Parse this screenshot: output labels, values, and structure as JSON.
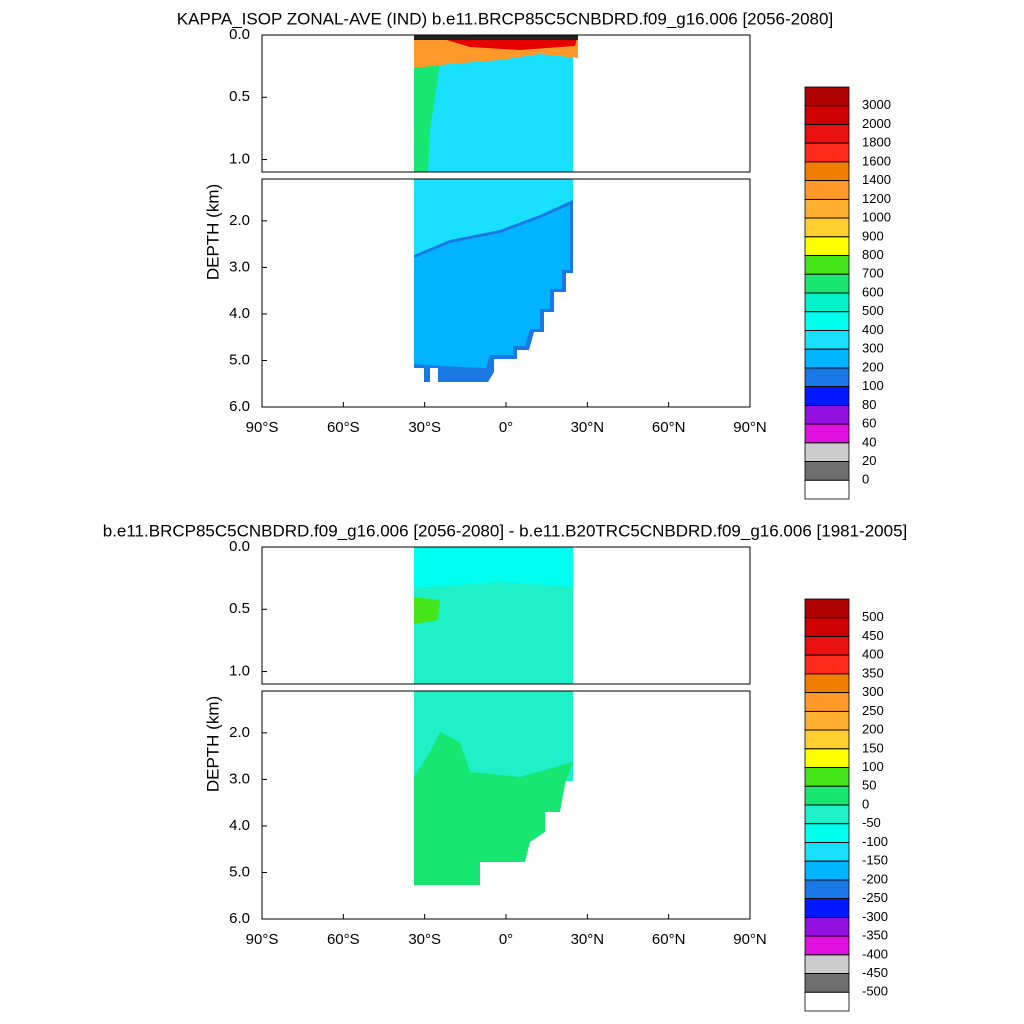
{
  "chart_data": [
    {
      "type": "contour",
      "title": "KAPPA_ISOP ZONAL-AVE (IND) b.e11.BRCP85C5CNBDRD.f09_g16.006 [2056-2080]",
      "ylabel": "DEPTH (km)",
      "xlim": [
        -90,
        90
      ],
      "xticks": [
        {
          "value": -90,
          "label": "90°S"
        },
        {
          "value": -60,
          "label": "60°S"
        },
        {
          "value": -30,
          "label": "30°S"
        },
        {
          "value": 0,
          "label": "0°"
        },
        {
          "value": 30,
          "label": "30°N"
        },
        {
          "value": 60,
          "label": "60°N"
        },
        {
          "value": 90,
          "label": "90°N"
        }
      ],
      "panels": [
        {
          "ylim": [
            0,
            1.1
          ],
          "yticks": [
            {
              "value": 0,
              "label": "0.0"
            },
            {
              "value": 0.5,
              "label": "0.5"
            },
            {
              "value": 1,
              "label": "1.0"
            }
          ]
        },
        {
          "ylim": [
            1.1,
            6
          ],
          "yticks": [
            {
              "value": 2,
              "label": "2.0"
            },
            {
              "value": 3,
              "label": "3.0"
            },
            {
              "value": 4,
              "label": "4.0"
            },
            {
              "value": 5,
              "label": "5.0"
            },
            {
              "value": 6,
              "label": "6.0"
            }
          ]
        }
      ],
      "colorbar": {
        "levels": [
          3000,
          2000,
          1800,
          1600,
          1400,
          1200,
          1000,
          900,
          800,
          700,
          600,
          500,
          400,
          300,
          200,
          100,
          80,
          60,
          40,
          20,
          0
        ],
        "colors": [
          "#b00000",
          "#d10000",
          "#e8100f",
          "#ff2a1a",
          "#f07c00",
          "#ff9a2a",
          "#ffb030",
          "#ffd030",
          "#ffff00",
          "#44e61a",
          "#17e670",
          "#00f0c8",
          "#00ffee",
          "#1ae0ff",
          "#00b4ff",
          "#1a78e6",
          "#0018ff",
          "#9410e0",
          "#e010e0",
          "#cccccc",
          "#6e6e6e",
          "#ffffff"
        ]
      }
    },
    {
      "type": "contour",
      "title": "b.e11.BRCP85C5CNBDRD.f09_g16.006 [2056-2080] - b.e11.B20TRC5CNBDRD.f09_g16.006 [1981-2005]",
      "ylabel": "DEPTH (km)",
      "xlim": [
        -90,
        90
      ],
      "xticks": [
        {
          "value": -90,
          "label": "90°S"
        },
        {
          "value": -60,
          "label": "60°S"
        },
        {
          "value": -30,
          "label": "30°S"
        },
        {
          "value": 0,
          "label": "0°"
        },
        {
          "value": 30,
          "label": "30°N"
        },
        {
          "value": 60,
          "label": "60°N"
        },
        {
          "value": 90,
          "label": "90°N"
        }
      ],
      "panels": [
        {
          "ylim": [
            0,
            1.1
          ],
          "yticks": [
            {
              "value": 0,
              "label": "0.0"
            },
            {
              "value": 0.5,
              "label": "0.5"
            },
            {
              "value": 1,
              "label": "1.0"
            }
          ]
        },
        {
          "ylim": [
            1.1,
            6
          ],
          "yticks": [
            {
              "value": 2,
              "label": "2.0"
            },
            {
              "value": 3,
              "label": "3.0"
            },
            {
              "value": 4,
              "label": "4.0"
            },
            {
              "value": 5,
              "label": "5.0"
            },
            {
              "value": 6,
              "label": "6.0"
            }
          ]
        }
      ],
      "colorbar": {
        "levels": [
          500,
          450,
          400,
          350,
          300,
          250,
          200,
          150,
          100,
          50,
          0,
          -50,
          -100,
          -150,
          -200,
          -250,
          -300,
          -350,
          -400,
          -450,
          -500
        ],
        "colors": [
          "#b00000",
          "#d10000",
          "#e8100f",
          "#ff2a1a",
          "#f07c00",
          "#ff9a2a",
          "#ffb030",
          "#ffd030",
          "#ffff00",
          "#44e61a",
          "#17e670",
          "#1ef0c8",
          "#00ffee",
          "#1ae0ff",
          "#00b4ff",
          "#1a78e6",
          "#0018ff",
          "#9410e0",
          "#e010e0",
          "#cccccc",
          "#6e6e6e",
          "#ffffff"
        ]
      }
    }
  ]
}
